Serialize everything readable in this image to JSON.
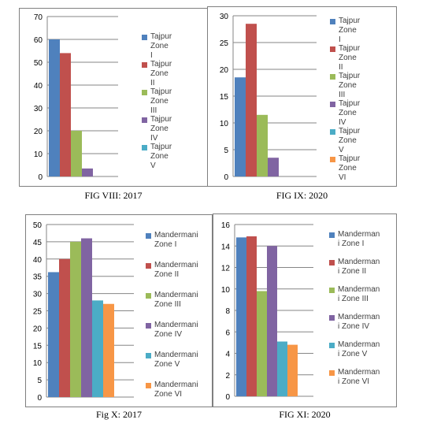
{
  "chart_data": [
    {
      "type": "bar",
      "caption": "FIG VIII: 2017",
      "ylim": [
        0,
        70
      ],
      "yticks": [
        0,
        10,
        20,
        30,
        40,
        50,
        60,
        70
      ],
      "series": [
        {
          "name": "Tajpur Zone I",
          "value": 60,
          "color": "#4f81bd"
        },
        {
          "name": "Tajpur Zone II",
          "value": 54,
          "color": "#c0504d"
        },
        {
          "name": "Tajpur Zone III",
          "value": 20,
          "color": "#9bbb59"
        },
        {
          "name": "Tajpur Zone IV",
          "value": 3.5,
          "color": "#8064a2"
        },
        {
          "name": "Tajpur Zone V",
          "value": null,
          "color": "#4bacc6"
        }
      ]
    },
    {
      "type": "bar",
      "caption": "FIG IX: 2020",
      "ylim": [
        0,
        30
      ],
      "yticks": [
        0,
        5,
        10,
        15,
        20,
        25,
        30
      ],
      "series": [
        {
          "name": "Tajpur Zone I",
          "value": 18.5,
          "color": "#4f81bd"
        },
        {
          "name": "Tajpur Zone II",
          "value": 28.5,
          "color": "#c0504d"
        },
        {
          "name": "Tajpur Zone III",
          "value": 11.5,
          "color": "#9bbb59"
        },
        {
          "name": "Tajpur Zone IV",
          "value": 3.5,
          "color": "#8064a2"
        },
        {
          "name": "Tajpur Zone V",
          "value": null,
          "color": "#4bacc6"
        },
        {
          "name": "Tajpur Zone VI",
          "value": null,
          "color": "#f79646"
        }
      ]
    },
    {
      "type": "bar",
      "caption": "Fig X: 2017",
      "ylim": [
        0,
        50
      ],
      "yticks": [
        0,
        5,
        10,
        15,
        20,
        25,
        30,
        35,
        40,
        45,
        50
      ],
      "series": [
        {
          "name": "Mandermani Zone I",
          "value": 36.2,
          "color": "#4f81bd"
        },
        {
          "name": "Mandermani Zone II",
          "value": 40,
          "color": "#c0504d"
        },
        {
          "name": "Mandermani Zone III",
          "value": 45,
          "color": "#9bbb59"
        },
        {
          "name": "Mandermani Zone IV",
          "value": 46,
          "color": "#8064a2"
        },
        {
          "name": "Mandermani Zone V",
          "value": 28,
          "color": "#4bacc6"
        },
        {
          "name": "Mandermani Zone VI",
          "value": 27,
          "color": "#f79646"
        }
      ]
    },
    {
      "type": "bar",
      "caption": "FIG XI: 2020",
      "ylim": [
        0,
        16
      ],
      "yticks": [
        0,
        2,
        4,
        6,
        8,
        10,
        12,
        14,
        16
      ],
      "series": [
        {
          "name": "Mandermani Zone I",
          "value": 14.8,
          "color": "#4f81bd"
        },
        {
          "name": "Mandermani Zone II",
          "value": 14.9,
          "color": "#c0504d"
        },
        {
          "name": "Mandermani Zone III",
          "value": 9.8,
          "color": "#9bbb59"
        },
        {
          "name": "Mandermani Zone IV",
          "value": 14,
          "color": "#8064a2"
        },
        {
          "name": "Mandermani Zone V",
          "value": 5.1,
          "color": "#4bacc6"
        },
        {
          "name": "Mandermani Zone VI",
          "value": 4.8,
          "color": "#f79646"
        }
      ]
    }
  ],
  "legend_lines": [
    [
      [
        "Tajpur Zone I"
      ],
      [
        "Tajpur Zone",
        "II"
      ],
      [
        "Tajpur Zone",
        "III"
      ],
      [
        "Tajpur Zone",
        "IV"
      ],
      [
        "Tajpur Zone",
        "V"
      ]
    ],
    [
      [
        "Tajpur Zone I"
      ],
      [
        "Tajpur Zone",
        "II"
      ],
      [
        "Tajpur Zone",
        "III"
      ],
      [
        "Tajpur Zone",
        "IV"
      ],
      [
        "Tajpur Zone",
        "V"
      ],
      [
        "Tajpur Zone",
        "VI"
      ]
    ],
    [
      [
        "Mandermani",
        "Zone I"
      ],
      [
        "Mandermani",
        "Zone II"
      ],
      [
        "Mandermani",
        "Zone III"
      ],
      [
        "Mandermani",
        "Zone IV"
      ],
      [
        "Mandermani",
        "Zone V"
      ],
      [
        "Mandermani",
        "Zone VI"
      ]
    ],
    [
      [
        "Manderman",
        "i Zone I"
      ],
      [
        "Manderman",
        "i Zone II"
      ],
      [
        "Manderman",
        "i Zone III"
      ],
      [
        "Manderman",
        "i Zone IV"
      ],
      [
        "Manderman",
        "i Zone V"
      ],
      [
        "Manderman",
        "i Zone VI"
      ]
    ]
  ]
}
